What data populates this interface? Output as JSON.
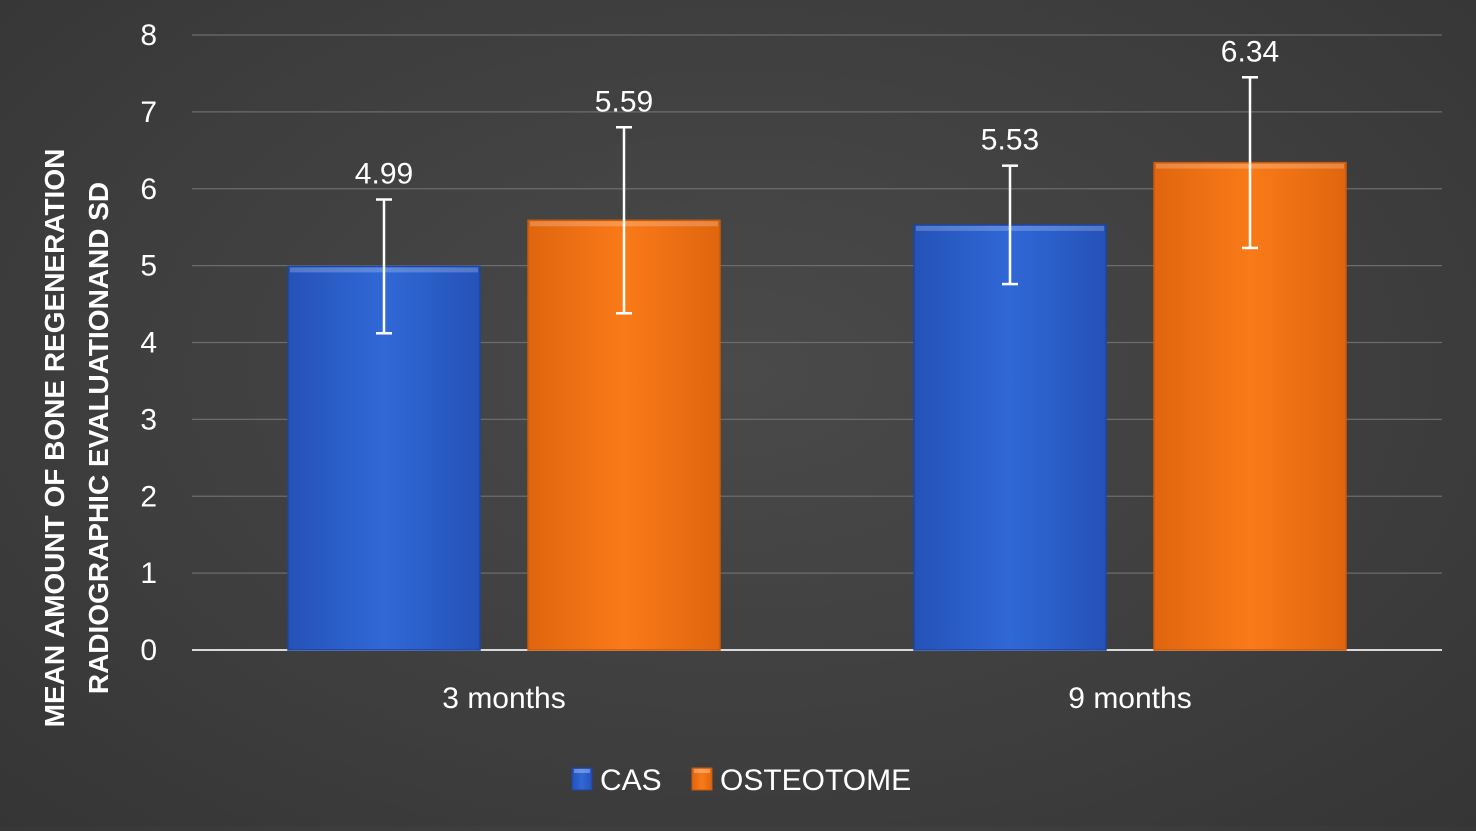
{
  "chart_data": {
    "type": "bar",
    "title": "",
    "xlabel": "",
    "ylabel_lines": [
      "MEAN AMOUNT OF BONE REGENERATION",
      "RADIOGRAPHIC  EVALUATIONAND SD"
    ],
    "categories": [
      "3 months",
      "9 months"
    ],
    "series": [
      {
        "name": "CAS",
        "values": [
          4.99,
          5.53
        ],
        "error_low": [
          4.12,
          4.76
        ],
        "error_high": [
          5.86,
          6.3
        ],
        "color": "#2e62cc"
      },
      {
        "name": "OSTEOTOME",
        "values": [
          5.59,
          6.34
        ],
        "error_low": [
          4.38,
          5.23
        ],
        "error_high": [
          6.8,
          7.45
        ],
        "color": "#f07315"
      }
    ],
    "data_labels": [
      [
        "4.99",
        "5.53"
      ],
      [
        "5.59",
        "6.34"
      ]
    ],
    "ylim": [
      0,
      8
    ],
    "yticks": [
      0,
      1,
      2,
      3,
      4,
      5,
      6,
      7,
      8
    ],
    "grid": true,
    "legend_position": "bottom"
  }
}
